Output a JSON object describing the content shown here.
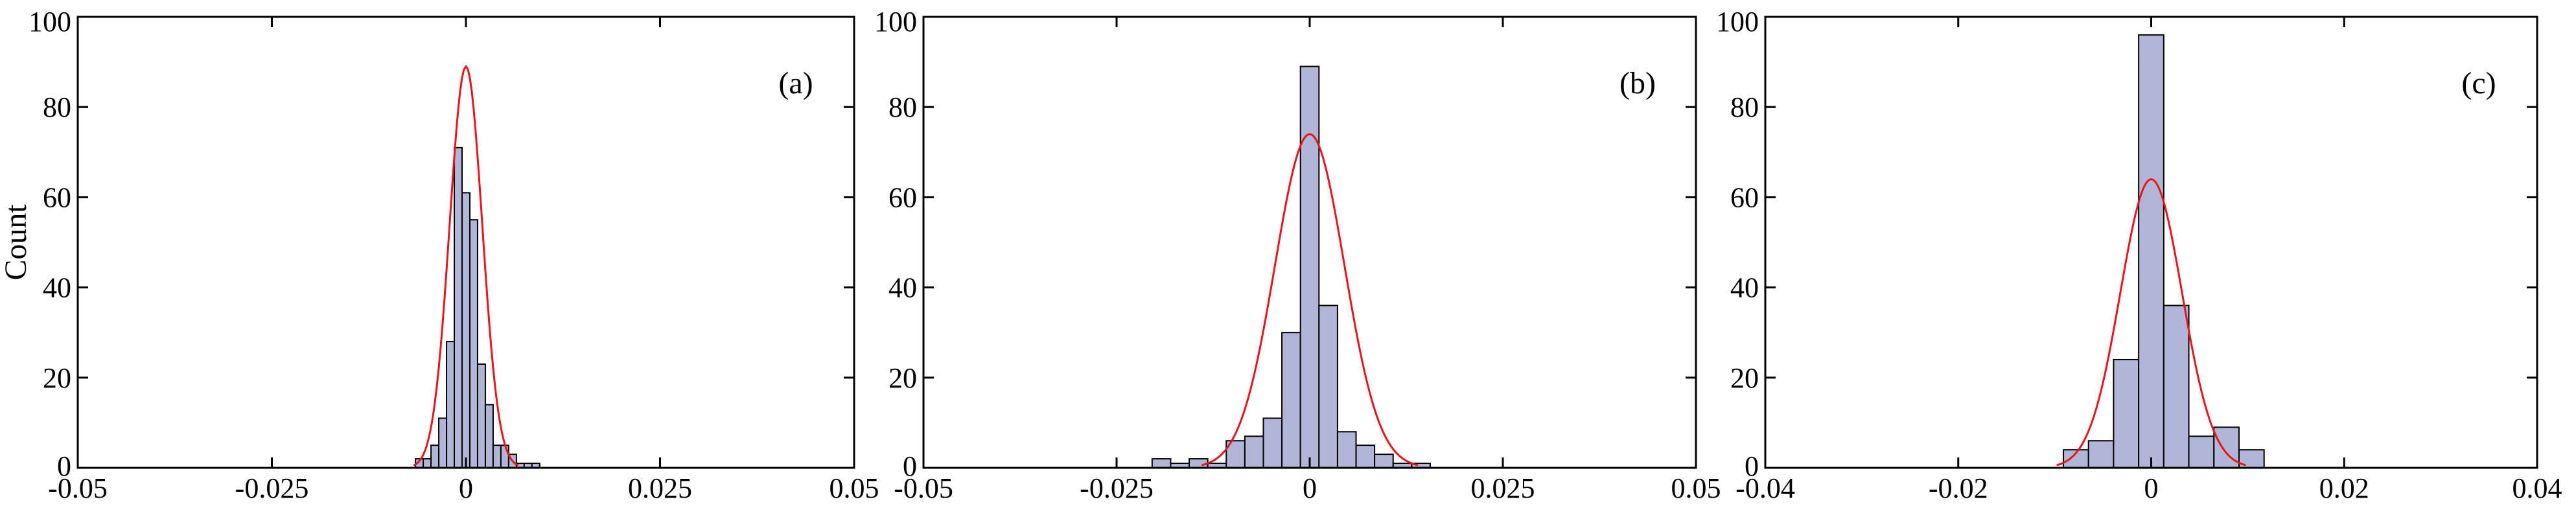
{
  "chart_data": [
    {
      "type": "bar",
      "panel_label": "(a)",
      "ylabel": "Count",
      "xlim": [
        -0.05,
        0.05
      ],
      "ylim": [
        0,
        100
      ],
      "xticks": [
        -0.05,
        -0.025,
        0,
        0.025,
        0.05
      ],
      "xtick_labels": [
        "-0.05",
        "-0.025",
        "0",
        "0.025",
        "0.05"
      ],
      "yticks": [
        0,
        20,
        40,
        60,
        80,
        100
      ],
      "ytick_labels": [
        "0",
        "20",
        "40",
        "60",
        "80",
        "100"
      ],
      "bin_width": 0.001,
      "bins": [
        {
          "x": -0.006,
          "value": 2
        },
        {
          "x": -0.005,
          "value": 2
        },
        {
          "x": -0.004,
          "value": 5
        },
        {
          "x": -0.003,
          "value": 11
        },
        {
          "x": -0.002,
          "value": 28
        },
        {
          "x": -0.001,
          "value": 71
        },
        {
          "x": 0.0,
          "value": 61
        },
        {
          "x": 0.001,
          "value": 55
        },
        {
          "x": 0.002,
          "value": 23
        },
        {
          "x": 0.003,
          "value": 14
        },
        {
          "x": 0.004,
          "value": 5
        },
        {
          "x": 0.005,
          "value": 5
        },
        {
          "x": 0.006,
          "value": 3
        },
        {
          "x": 0.007,
          "value": 1
        },
        {
          "x": 0.008,
          "value": 1
        },
        {
          "x": 0.009,
          "value": 1
        }
      ],
      "fit": {
        "type": "gaussian",
        "mean": 0.0,
        "sigma": 0.0021,
        "peak": 89
      }
    },
    {
      "type": "bar",
      "panel_label": "(b)",
      "xlim": [
        -0.05,
        0.05
      ],
      "ylim": [
        0,
        100
      ],
      "xticks": [
        -0.05,
        -0.025,
        0,
        0.025,
        0.05
      ],
      "xtick_labels": [
        "-0.05",
        "-0.025",
        "0",
        "0.025",
        "0.05"
      ],
      "yticks": [
        0,
        20,
        40,
        60,
        80,
        100
      ],
      "ytick_labels": [
        "0",
        "20",
        "40",
        "60",
        "80",
        "100"
      ],
      "bin_width": 0.0024,
      "bins": [
        {
          "x": -0.0192,
          "value": 2
        },
        {
          "x": -0.0168,
          "value": 1
        },
        {
          "x": -0.0144,
          "value": 2
        },
        {
          "x": -0.012,
          "value": 1
        },
        {
          "x": -0.0096,
          "value": 6
        },
        {
          "x": -0.0072,
          "value": 7
        },
        {
          "x": -0.0048,
          "value": 11
        },
        {
          "x": -0.0024,
          "value": 30
        },
        {
          "x": 0.0,
          "value": 89
        },
        {
          "x": 0.0024,
          "value": 36
        },
        {
          "x": 0.0048,
          "value": 8
        },
        {
          "x": 0.0072,
          "value": 5
        },
        {
          "x": 0.0096,
          "value": 3
        },
        {
          "x": 0.012,
          "value": 1
        },
        {
          "x": 0.0144,
          "value": 1
        }
      ],
      "fit": {
        "type": "gaussian",
        "mean": 0.0,
        "sigma": 0.0045,
        "peak": 74
      }
    },
    {
      "type": "bar",
      "panel_label": "(c)",
      "xlim": [
        -0.04,
        0.04
      ],
      "ylim": [
        0,
        100
      ],
      "xticks": [
        -0.04,
        -0.02,
        0,
        0.02,
        0.04
      ],
      "xtick_labels": [
        "-0.04",
        "-0.02",
        "0",
        "0.02",
        "0.04"
      ],
      "yticks": [
        0,
        20,
        40,
        60,
        80,
        100
      ],
      "ytick_labels": [
        "0",
        "20",
        "40",
        "60",
        "80",
        "100"
      ],
      "bin_width": 0.0026,
      "bins": [
        {
          "x": -0.0078,
          "value": 4
        },
        {
          "x": -0.0052,
          "value": 6
        },
        {
          "x": -0.0026,
          "value": 24
        },
        {
          "x": 0.0,
          "value": 96
        },
        {
          "x": 0.0026,
          "value": 36
        },
        {
          "x": 0.0052,
          "value": 7
        },
        {
          "x": 0.0078,
          "value": 9
        },
        {
          "x": 0.0104,
          "value": 4
        }
      ],
      "fit": {
        "type": "gaussian",
        "mean": 0.0,
        "sigma": 0.0032,
        "peak": 64
      }
    }
  ],
  "style": {
    "bar_fill": "#b2b6d6",
    "bar_stroke": "#000000",
    "fit_color": "#e8141c",
    "axis_color": "#000000"
  }
}
